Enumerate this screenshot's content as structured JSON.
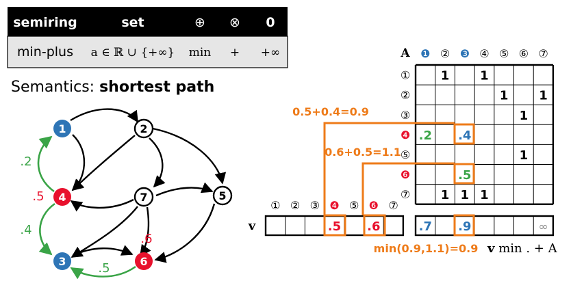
{
  "table": {
    "headers": {
      "semiring": "semiring",
      "set": "set",
      "oplus": "⊕",
      "otimes": "⊗",
      "zero": "0"
    },
    "row": {
      "name": "min-plus",
      "set": "a ∈ ℝ ∪ {+∞}",
      "oplus": "min",
      "otimes": "+",
      "zero": "+∞"
    }
  },
  "semantics": {
    "prefix": "Semantics: ",
    "bold": "shortest path"
  },
  "graph": {
    "nodes": [
      {
        "id": "1",
        "label": "❶",
        "color": "#2e75b6"
      },
      {
        "id": "2",
        "label": "②",
        "color": "#ffffff"
      },
      {
        "id": "3",
        "label": "❸",
        "color": "#2e75b6"
      },
      {
        "id": "4",
        "label": "❹",
        "color": "#e8112d"
      },
      {
        "id": "5",
        "label": "⑤",
        "color": "#ffffff"
      },
      {
        "id": "6",
        "label": "❻",
        "color": "#e8112d"
      },
      {
        "id": "7",
        "label": "⑦",
        "color": "#ffffff"
      }
    ],
    "edge_labels": {
      "e41": ".2",
      "e43": ".4",
      "e36": ".5",
      "v4": ".5",
      "e76": ".6"
    }
  },
  "matrix": {
    "name": "A",
    "col_headers": [
      "❶",
      "②",
      "❸",
      "④",
      "⑤",
      "⑥",
      "⑦"
    ],
    "row_headers": [
      "①",
      "②",
      "③",
      "❹",
      "⑤",
      "❻",
      "⑦"
    ],
    "cells": [
      [
        "",
        "1",
        "",
        "1",
        "",
        "",
        ""
      ],
      [
        "",
        "",
        "",
        "",
        "1",
        "",
        "1"
      ],
      [
        "",
        "",
        "",
        "",
        "",
        "1",
        ""
      ],
      [
        ".2",
        "",
        ".4",
        "",
        "",
        "",
        ""
      ],
      [
        "",
        "",
        "",
        "",
        "",
        "1",
        ""
      ],
      [
        "",
        "",
        ".5",
        "",
        "",
        "",
        ""
      ],
      [
        "",
        "1",
        "1",
        "1",
        "",
        "",
        ""
      ]
    ]
  },
  "vector": {
    "name": "v",
    "headers": [
      "①",
      "②",
      "③",
      "❹",
      "⑤",
      "❻",
      "⑦"
    ],
    "values": [
      "",
      "",
      "",
      ".5",
      "",
      ".6",
      ""
    ]
  },
  "result": {
    "values": [
      ".7",
      "",
      ".9",
      "",
      "",
      "",
      "∞"
    ],
    "expression_bold": "v",
    "expression_rest": " min . + A"
  },
  "annotations": {
    "sum1": "0.5+0.4=0.9",
    "sum2": "0.6+0.5=1.1",
    "min": "min(0.9,1.1)=0.9"
  },
  "colors": {
    "header_bg": "#000000",
    "row_bg": "#e6e6e6",
    "blue": "#2e75b6",
    "red": "#e8112d",
    "green": "#3aa447",
    "orange": "#ee7b19"
  }
}
